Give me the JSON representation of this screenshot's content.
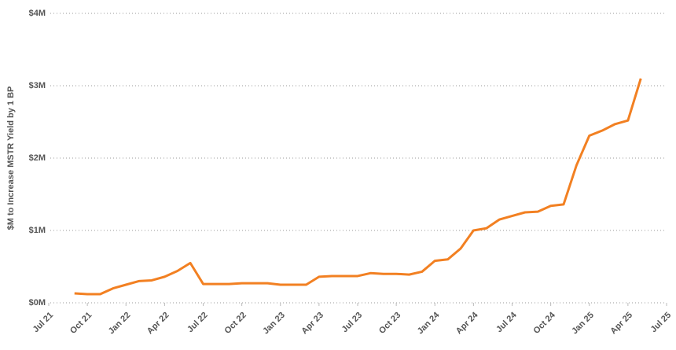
{
  "chart_data": {
    "type": "line",
    "y_label": "$M to Increase MSTR Yield by 1 BP",
    "x": [
      "2021-09",
      "2021-10",
      "2021-11",
      "2021-12",
      "2022-01",
      "2022-02",
      "2022-03",
      "2022-04",
      "2022-05",
      "2022-06",
      "2022-07",
      "2022-08",
      "2022-09",
      "2022-10",
      "2022-11",
      "2022-12",
      "2023-01",
      "2023-02",
      "2023-03",
      "2023-04",
      "2023-05",
      "2023-06",
      "2023-07",
      "2023-08",
      "2023-09",
      "2023-10",
      "2023-11",
      "2023-12",
      "2024-01",
      "2024-02",
      "2024-03",
      "2024-04",
      "2024-05",
      "2024-06",
      "2024-07",
      "2024-08",
      "2024-09",
      "2024-10",
      "2024-11",
      "2024-12",
      "2025-01",
      "2025-02",
      "2025-03",
      "2025-04",
      "2025-05"
    ],
    "series": [
      {
        "color": "#f28022",
        "values": [
          0.13,
          0.12,
          0.12,
          0.2,
          0.25,
          0.3,
          0.31,
          0.36,
          0.44,
          0.55,
          0.26,
          0.26,
          0.26,
          0.27,
          0.27,
          0.27,
          0.25,
          0.25,
          0.25,
          0.36,
          0.37,
          0.37,
          0.37,
          0.41,
          0.4,
          0.4,
          0.39,
          0.43,
          0.58,
          0.6,
          0.75,
          1.0,
          1.03,
          1.15,
          1.2,
          1.25,
          1.26,
          1.34,
          1.36,
          1.9,
          2.31,
          2.38,
          2.47,
          2.52,
          3.1
        ]
      }
    ],
    "xlim": [
      "2021-07",
      "2025-07"
    ],
    "xticks": [
      {
        "value": "2021-07",
        "label": "Jul 21"
      },
      {
        "value": "2021-10",
        "label": "Oct 21"
      },
      {
        "value": "2022-01",
        "label": "Jan 22"
      },
      {
        "value": "2022-04",
        "label": "Apr 22"
      },
      {
        "value": "2022-07",
        "label": "Jul 22"
      },
      {
        "value": "2022-10",
        "label": "Oct 22"
      },
      {
        "value": "2023-01",
        "label": "Jan 23"
      },
      {
        "value": "2023-04",
        "label": "Apr 23"
      },
      {
        "value": "2023-07",
        "label": "Jul 23"
      },
      {
        "value": "2023-10",
        "label": "Oct 23"
      },
      {
        "value": "2024-01",
        "label": "Jan 24"
      },
      {
        "value": "2024-04",
        "label": "Apr 24"
      },
      {
        "value": "2024-07",
        "label": "Jul 24"
      },
      {
        "value": "2024-10",
        "label": "Oct 24"
      },
      {
        "value": "2025-01",
        "label": "Jan 25"
      },
      {
        "value": "2025-04",
        "label": "Apr 25"
      },
      {
        "value": "2025-07",
        "label": "Jul 25"
      }
    ],
    "ylim": [
      0,
      4
    ],
    "yticks": [
      {
        "value": 0,
        "label": "$0M"
      },
      {
        "value": 1,
        "label": "$1M"
      },
      {
        "value": 2,
        "label": "$2M"
      },
      {
        "value": 3,
        "label": "$3M"
      },
      {
        "value": 4,
        "label": "$4M"
      }
    ],
    "grid": true
  }
}
